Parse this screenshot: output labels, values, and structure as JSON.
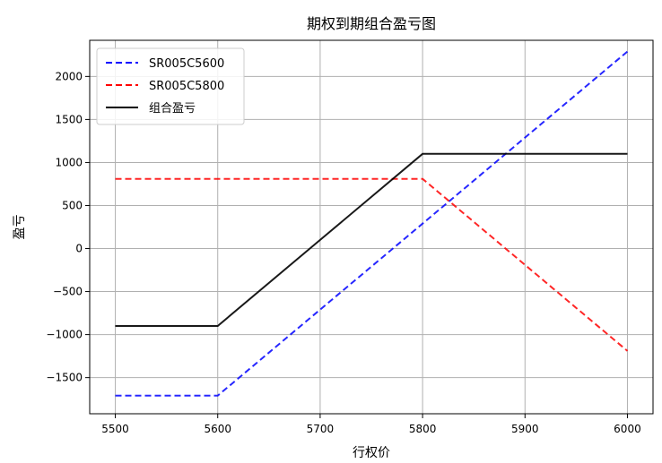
{
  "chart_data": {
    "type": "line",
    "title": "期权到期组合盈亏图",
    "xlabel": "行权价",
    "ylabel": "盈亏",
    "x": [
      5500,
      5600,
      5700,
      5800,
      5900,
      6000
    ],
    "xlim": [
      5475,
      6025
    ],
    "ylim": [
      -1920,
      2420
    ],
    "xticks": [
      5500,
      5600,
      5700,
      5800,
      5900,
      6000
    ],
    "yticks": [
      -1500,
      -1000,
      -500,
      0,
      500,
      1000,
      1500,
      2000
    ],
    "ytick_labels": [
      "−1500",
      "−1000",
      "−500",
      "0",
      "500",
      "1000",
      "1500",
      "2000"
    ],
    "grid": true,
    "legend_position": "top-left",
    "series": [
      {
        "name": "SR005C5600",
        "color": "#0000ff",
        "style": "dashed",
        "values": [
          -1710,
          -1710,
          -710,
          290,
          1290,
          2290
        ]
      },
      {
        "name": "SR005C5800",
        "color": "#ff0000",
        "style": "dashed",
        "values": [
          810,
          810,
          810,
          810,
          -190,
          -1190
        ]
      },
      {
        "name": "组合盈亏",
        "color": "#000000",
        "style": "solid",
        "values": [
          -900,
          -900,
          100,
          1100,
          1100,
          1100
        ]
      }
    ]
  }
}
